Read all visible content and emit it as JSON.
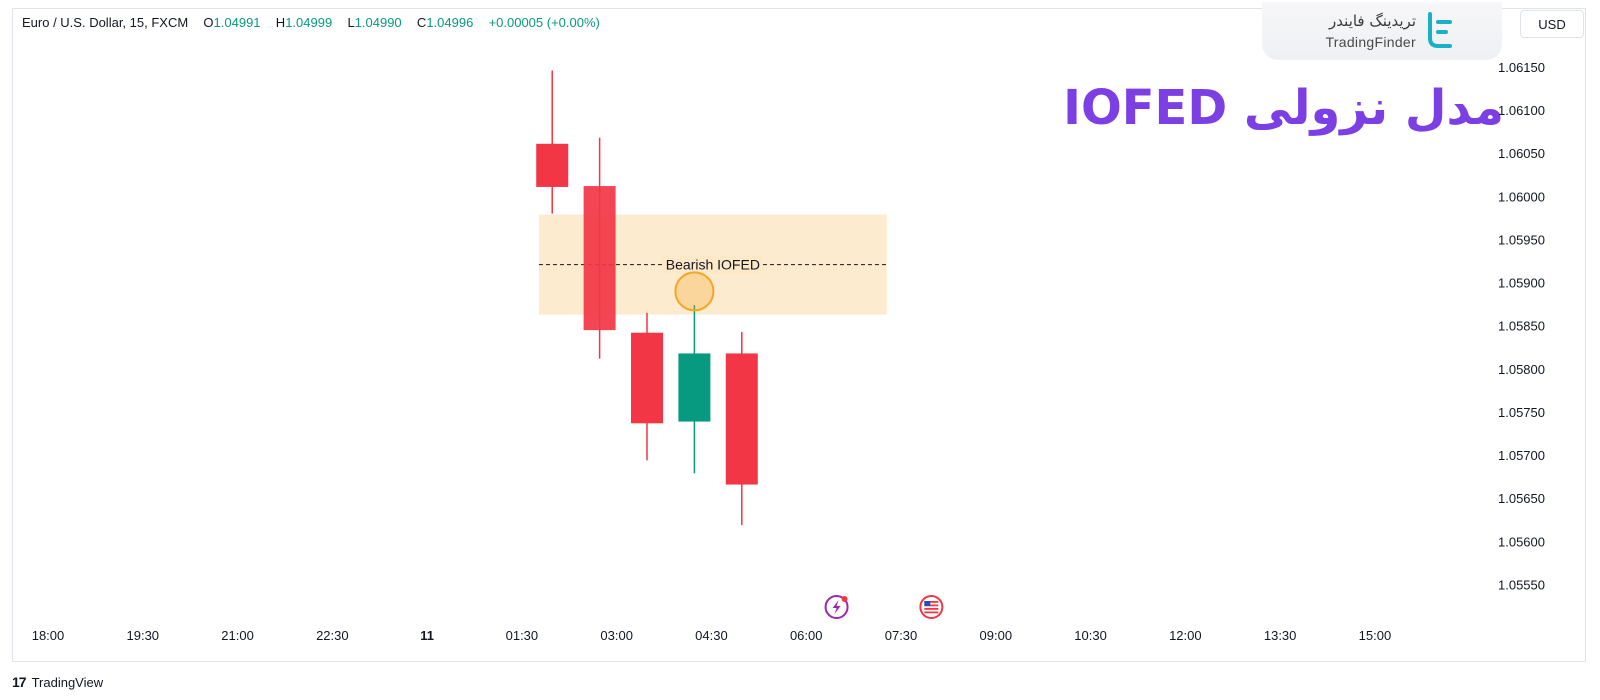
{
  "header": {
    "symbol_label": "Euro / U.S. Dollar, 15, FXCM",
    "o_label": "O",
    "o_value": "1.04991",
    "h_label": "H",
    "h_value": "1.04999",
    "l_label": "L",
    "l_value": "1.04990",
    "c_label": "C",
    "c_value": "1.04996",
    "change": "+0.00005 (+0.00%)"
  },
  "currency_button": "USD",
  "logo": {
    "persian": "تریدینگ فایندر",
    "english": "TradingFinder",
    "color": "#1ab0c8"
  },
  "headline": "مدل نزولی IOFED",
  "footer_brand": {
    "glyph": "17",
    "text": "TradingView"
  },
  "colors": {
    "up": "#089981",
    "down": "#f23645",
    "zone": "#fde8c8",
    "marker": "#f5a623",
    "headline": "#7b3fe4"
  },
  "chart_data": {
    "type": "candlestick",
    "title": "",
    "y_ticks": [
      1.0555,
      1.056,
      1.0565,
      1.057,
      1.0575,
      1.058,
      1.0585,
      1.059,
      1.0595,
      1.06,
      1.0605,
      1.061,
      1.0615
    ],
    "y_tick_labels": [
      "1.05550",
      "1.05600",
      "1.05650",
      "1.05700",
      "1.05750",
      "1.05800",
      "1.05850",
      "1.05900",
      "1.05950",
      "1.06000",
      "1.06050",
      "1.06100",
      "1.06150"
    ],
    "ylim": [
      1.0551,
      1.0618
    ],
    "x_ticks": [
      "18:00",
      "19:30",
      "21:00",
      "22:30",
      "11",
      "01:30",
      "03:00",
      "04:30",
      "06:00",
      "07:30",
      "09:00",
      "10:30",
      "12:00",
      "13:30",
      "15:00"
    ],
    "x_tick_bold": "11",
    "xlim": [
      0,
      14.75
    ],
    "candles": [
      {
        "t": 5.32,
        "open": 1.06062,
        "high": 1.06147,
        "low": 1.05981,
        "close": 1.06012
      },
      {
        "t": 5.82,
        "open": 1.06013,
        "high": 1.06069,
        "low": 1.05813,
        "close": 1.05846
      },
      {
        "t": 6.32,
        "open": 1.05843,
        "high": 1.05866,
        "low": 1.05695,
        "close": 1.05738
      },
      {
        "t": 6.82,
        "open": 1.0574,
        "high": 1.05875,
        "low": 1.0568,
        "close": 1.05819
      },
      {
        "t": 7.32,
        "open": 1.05819,
        "high": 1.05844,
        "low": 1.0562,
        "close": 1.05667
      }
    ],
    "zone": {
      "label": "Bearish IOFED",
      "y_top": 1.0598,
      "y_bottom": 1.05864,
      "y_mid": 1.05922,
      "t_start": 5.18,
      "t_end": 8.85
    },
    "marker": {
      "t": 6.82,
      "y": 1.05891
    },
    "event_icons": [
      {
        "t": 8.32,
        "kind": "bolt-event-icon"
      },
      {
        "t": 9.32,
        "kind": "us-flag-event-icon"
      }
    ]
  }
}
